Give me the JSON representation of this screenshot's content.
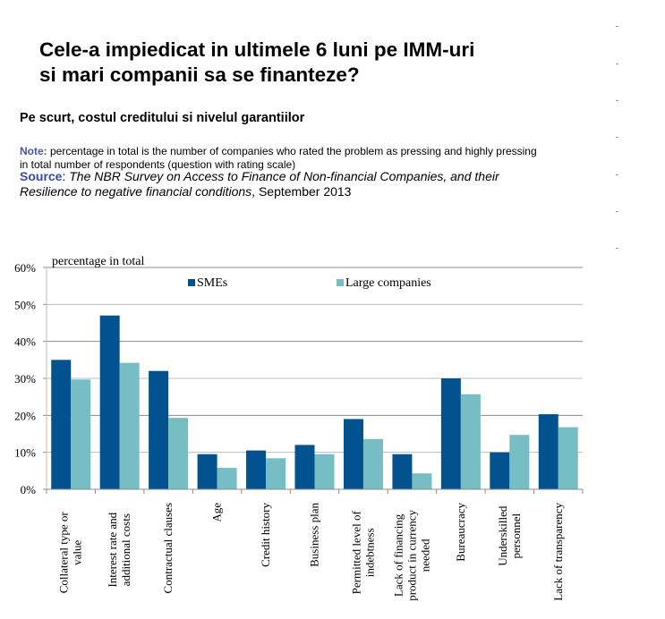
{
  "header": {
    "title_line1": "Cele-a impiedicat in ultimele 6 luni pe IMM-uri",
    "title_line2": "si mari companii sa se finanteze?",
    "subtitle": "Pe scurt, costul creditului si nivelul garantiilor"
  },
  "note": {
    "label": "Note:",
    "text": " percentage in total is the number of companies who rated the problem as pressing and highly pressing in total number of respondents (question with rating scale)"
  },
  "source": {
    "label": "Source",
    "colon": ": ",
    "italic_text": "The NBR Survey on Access to Finance of Non-financial Companies, and their Resilience to negative financial conditions",
    "date_text": ", September 2013"
  },
  "colors": {
    "smes": "#02528f",
    "large": "#76bec4",
    "gridline": "#b0b0b0",
    "note_label": "#4a56a8",
    "source_label": "#3b49a6"
  },
  "chart_data": {
    "type": "bar",
    "title": "",
    "ylabel": "percentage in total",
    "xlabel": "",
    "ylim": [
      0,
      60
    ],
    "yticks": [
      0,
      10,
      20,
      30,
      40,
      50,
      60
    ],
    "ytick_labels": [
      "0%",
      "10%",
      "20%",
      "30%",
      "40%",
      "50%",
      "60%"
    ],
    "grid": true,
    "legend_position": "top",
    "categories": [
      [
        "Collateral type or",
        "value"
      ],
      [
        "Interest rate and",
        "additional costs"
      ],
      [
        "Contractual clauses"
      ],
      [
        "Age"
      ],
      [
        "Credit history"
      ],
      [
        "Business plan"
      ],
      [
        "Permitted level of",
        "indebtness"
      ],
      [
        "Lack of financing",
        "product in currency",
        "needed"
      ],
      [
        "Bureaucracy"
      ],
      [
        "Underskilled",
        "personnel"
      ],
      [
        "Lack of transparency"
      ]
    ],
    "series": [
      {
        "name": "SMEs",
        "values": [
          35.0,
          47.0,
          32.0,
          9.5,
          10.5,
          12.0,
          19.0,
          9.5,
          30.0,
          10.0,
          20.3
        ]
      },
      {
        "name": "Large companies",
        "values": [
          29.7,
          34.2,
          19.3,
          5.8,
          8.4,
          9.5,
          13.6,
          4.3,
          25.7,
          14.7,
          16.8
        ]
      }
    ]
  }
}
